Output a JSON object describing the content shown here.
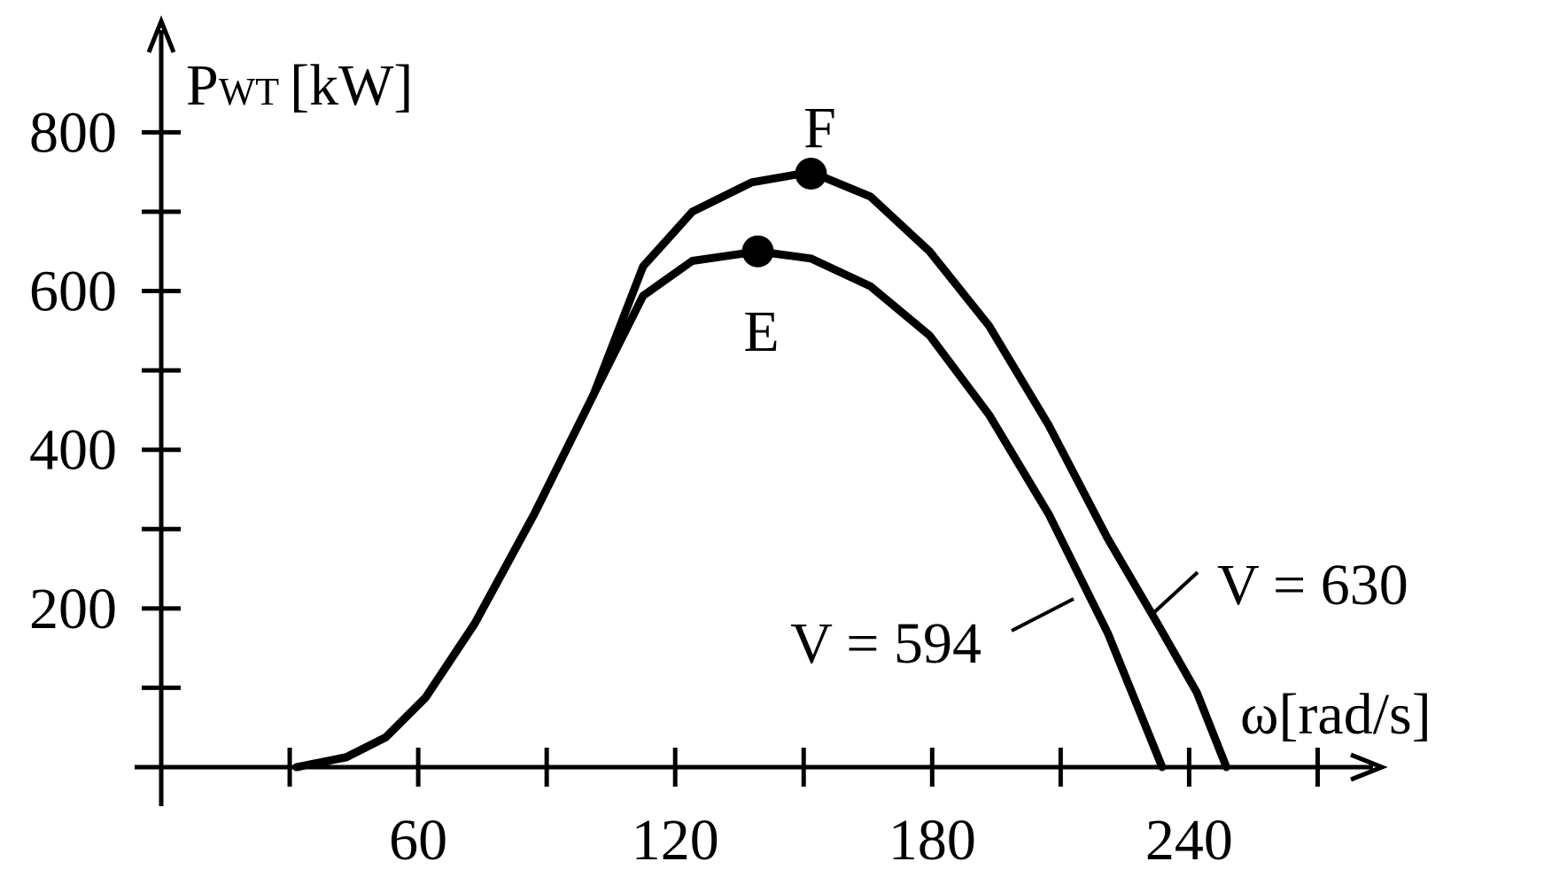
{
  "chart_data": {
    "type": "line",
    "ylabel": "P",
    "ylabel_sub": "WT",
    "ylabel_unit": "[kW]",
    "xlabel": "ω[rad/s]",
    "x": [
      31.6,
      43.2,
      52.4,
      61.7,
      73.2,
      87.1,
      100.9,
      112.5,
      124,
      137.9,
      151.7,
      165.6,
      179.4,
      193.3,
      207.2,
      221,
      232.6,
      241.8,
      248.7
    ],
    "series": [
      {
        "name": "V = 630",
        "color": "#000000",
        "values": [
          0,
          12.5,
          37.5,
          87.5,
          181,
          319,
          469,
          631,
          700,
          737,
          750,
          719,
          650,
          556,
          431,
          288,
          181,
          94,
          0
        ]
      },
      {
        "name": "V = 594",
        "color": "#000000",
        "x": [
          31.6,
          43.2,
          52.4,
          61.7,
          73.2,
          87.1,
          100.9,
          112.5,
          124,
          139.3,
          151.7,
          165.6,
          179.4,
          193.3,
          207.2,
          221,
          233.7
        ],
        "values": [
          0,
          12.5,
          37.5,
          87.5,
          181,
          319,
          469,
          594,
          638,
          650,
          641,
          606,
          544,
          444,
          319,
          169,
          0
        ]
      }
    ],
    "points": [
      {
        "label": "E",
        "x": 139.3,
        "y": 650
      },
      {
        "label": "F",
        "x": 151.7,
        "y": 748
      }
    ],
    "xlim": [
      0,
      285
    ],
    "ylim": [
      0,
      940
    ],
    "xticks": [
      60,
      120,
      180,
      240
    ],
    "xminor_ticks": [
      30,
      90,
      150,
      210,
      270
    ],
    "yticks": [
      200,
      400,
      600,
      800
    ],
    "yminor_ticks": [
      100,
      300,
      500,
      700
    ],
    "grid": false
  }
}
